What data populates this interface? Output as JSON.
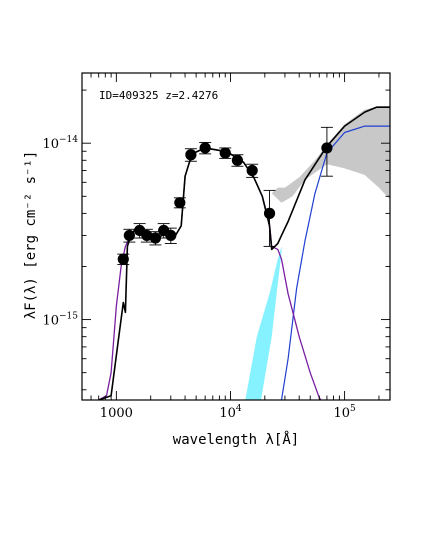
{
  "chart_data": {
    "type": "scatter",
    "annotation": "ID=409325 z=2.4276",
    "xlabel": "wavelength λ[Å]",
    "ylabel": "λF(λ) [erg cm⁻² s⁻¹]",
    "xscale": "log",
    "yscale": "log",
    "xlim": [
      500,
      250000
    ],
    "ylim": [
      3.5e-16,
      2.5e-14
    ],
    "x_ticks": [
      {
        "value": 1000,
        "label": "1000"
      },
      {
        "value": 10000,
        "label": "10",
        "sup": "4"
      },
      {
        "value": 100000,
        "label": "10",
        "sup": "5"
      }
    ],
    "y_ticks": [
      {
        "value": 1e-15,
        "label": "10",
        "sup": "−15"
      },
      {
        "value": 1e-14,
        "label": "10",
        "sup": "−14"
      }
    ],
    "colors": {
      "points": "#000000",
      "total_model": "#000000",
      "stellar_model": "#7a1fa2",
      "dust_model": "#1f3fd0",
      "dust_band": "#86f1ff",
      "total_band": "#c8c8c8"
    },
    "series": [
      {
        "kind": "points",
        "points": [
          {
            "x": 1150,
            "y": 2.2e-15,
            "err": 1.5e-16
          },
          {
            "x": 1300,
            "y": 3e-15,
            "err": 2.5e-16
          },
          {
            "x": 1600,
            "y": 3.2e-15,
            "err": 3e-16
          },
          {
            "x": 1850,
            "y": 3e-15,
            "err": 2.5e-16
          },
          {
            "x": 2200,
            "y": 2.9e-15,
            "err": 2.5e-16
          },
          {
            "x": 2600,
            "y": 3.2e-15,
            "err": 3e-16
          },
          {
            "x": 3000,
            "y": 3e-15,
            "err": 3e-16
          },
          {
            "x": 3600,
            "y": 4.6e-15,
            "err": 3e-16
          },
          {
            "x": 4500,
            "y": 8.6e-15,
            "err": 7e-16
          },
          {
            "x": 6000,
            "y": 9.4e-15,
            "err": 7e-16
          },
          {
            "x": 9000,
            "y": 8.8e-15,
            "err": 6e-16
          },
          {
            "x": 11500,
            "y": 8e-15,
            "err": 6e-16
          },
          {
            "x": 15500,
            "y": 7e-15,
            "err": 6e-16
          },
          {
            "x": 22000,
            "y": 4e-15,
            "err": 1.4e-15
          },
          {
            "x": 70000,
            "y": 9.4e-15,
            "err": 2.9e-15
          }
        ]
      },
      {
        "kind": "line",
        "role": "total_model",
        "points": [
          [
            700,
            3.5e-16
          ],
          [
            900,
            3.7e-16
          ],
          [
            1050,
            8e-16
          ],
          [
            1150,
            1.25e-15
          ],
          [
            1200,
            1.1e-15
          ],
          [
            1250,
            2.6e-15
          ],
          [
            1350,
            3.05e-15
          ],
          [
            1500,
            3.3e-15
          ],
          [
            1700,
            3.2e-15
          ],
          [
            2000,
            3.05e-15
          ],
          [
            2400,
            2.95e-15
          ],
          [
            2800,
            3.1e-15
          ],
          [
            3300,
            3e-15
          ],
          [
            3700,
            3.4e-15
          ],
          [
            4000,
            6.5e-15
          ],
          [
            4600,
            8.7e-15
          ],
          [
            6000,
            9.4e-15
          ],
          [
            8000,
            9.1e-15
          ],
          [
            10000,
            8.7e-15
          ],
          [
            13000,
            7.8e-15
          ],
          [
            16000,
            6.4e-15
          ],
          [
            19000,
            5e-15
          ],
          [
            22000,
            3.4e-15
          ],
          [
            23000,
            2.5e-15
          ],
          [
            26000,
            2.7e-15
          ],
          [
            28000,
            3e-15
          ],
          [
            32000,
            3.6e-15
          ],
          [
            45000,
            6.2e-15
          ],
          [
            70000,
            9.6e-15
          ],
          [
            100000,
            1.25e-14
          ],
          [
            150000,
            1.5e-14
          ],
          [
            190000,
            1.6e-14
          ],
          [
            250000,
            1.6e-14
          ]
        ]
      },
      {
        "kind": "line",
        "role": "stellar_model",
        "points": [
          [
            700,
            3.5e-16
          ],
          [
            820,
            3.7e-16
          ],
          [
            900,
            5e-16
          ],
          [
            1000,
            1.2e-15
          ],
          [
            1100,
            2e-15
          ],
          [
            1200,
            2.6e-15
          ],
          [
            1350,
            3.05e-15
          ],
          [
            1500,
            3.3e-15
          ],
          [
            1700,
            3.2e-15
          ],
          [
            2000,
            3.05e-15
          ],
          [
            2400,
            2.95e-15
          ],
          [
            2800,
            3.1e-15
          ],
          [
            3300,
            3e-15
          ],
          [
            3700,
            3.4e-15
          ],
          [
            4000,
            6.5e-15
          ],
          [
            4600,
            8.7e-15
          ],
          [
            6000,
            9.4e-15
          ],
          [
            8000,
            9.1e-15
          ],
          [
            10000,
            8.7e-15
          ],
          [
            13000,
            7.8e-15
          ],
          [
            16000,
            6.4e-15
          ],
          [
            19000,
            5e-15
          ],
          [
            22000,
            3.5e-15
          ],
          [
            23000,
            2.6e-15
          ],
          [
            26000,
            2.5e-15
          ],
          [
            28000,
            2.2e-15
          ],
          [
            32000,
            1.4e-15
          ],
          [
            40000,
            8e-16
          ],
          [
            50000,
            5e-16
          ],
          [
            60000,
            3.6e-16
          ],
          [
            62000,
            3.5e-16
          ]
        ]
      },
      {
        "kind": "line",
        "role": "dust_model",
        "points": [
          [
            28000,
            3.5e-16
          ],
          [
            32000,
            6e-16
          ],
          [
            38000,
            1.5e-15
          ],
          [
            45000,
            2.8e-15
          ],
          [
            55000,
            5.2e-15
          ],
          [
            70000,
            8.8e-15
          ],
          [
            100000,
            1.15e-14
          ],
          [
            150000,
            1.25e-14
          ],
          [
            250000,
            1.25e-14
          ]
        ]
      },
      {
        "kind": "band",
        "role": "dust_band",
        "lower": [
          [
            18500,
            3.5e-16
          ],
          [
            23000,
            8e-16
          ],
          [
            26000,
            1.6e-15
          ],
          [
            28000,
            2.4e-15
          ]
        ],
        "upper": [
          [
            13500,
            3.5e-16
          ],
          [
            17000,
            8e-16
          ],
          [
            22000,
            1.4e-15
          ],
          [
            26000,
            2.2e-15
          ],
          [
            28000,
            2.6e-15
          ]
        ]
      },
      {
        "kind": "band",
        "role": "total_band",
        "lower": [
          [
            23000,
            5.2e-15
          ],
          [
            28000,
            4.6e-15
          ],
          [
            35000,
            5e-15
          ],
          [
            45000,
            6.2e-15
          ],
          [
            70000,
            7.6e-15
          ],
          [
            100000,
            7.2e-15
          ],
          [
            150000,
            6.6e-15
          ],
          [
            200000,
            5.6e-15
          ],
          [
            250000,
            4.8e-15
          ]
        ],
        "upper": [
          [
            23000,
            5.2e-15
          ],
          [
            26000,
            5.6e-15
          ],
          [
            30000,
            5.6e-15
          ],
          [
            40000,
            6.4e-15
          ],
          [
            55000,
            8e-15
          ],
          [
            70000,
            9.8e-15
          ],
          [
            100000,
            1.28e-14
          ],
          [
            150000,
            1.55e-14
          ],
          [
            200000,
            1.62e-14
          ],
          [
            250000,
            1.62e-14
          ]
        ]
      }
    ]
  }
}
